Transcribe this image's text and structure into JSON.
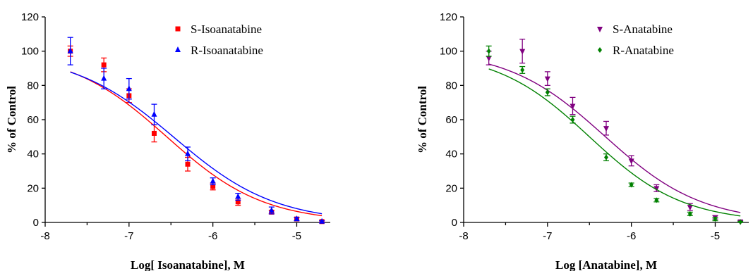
{
  "chart_data": [
    {
      "type": "scatter",
      "xlabel": "Log[ Isoanatabine], M",
      "ylabel": "% of Control",
      "xlim": [
        -8,
        -4.6
      ],
      "ylim": [
        0,
        120
      ],
      "xticks": [
        -8,
        -7,
        -6,
        -5
      ],
      "yticks": [
        0,
        20,
        40,
        60,
        80,
        100,
        120
      ],
      "legend_position": "top-right",
      "series": [
        {
          "name": "S-Isoanatabine",
          "color": "#ff0000",
          "marker": "square",
          "x": [
            -7.7,
            -7.3,
            -7.0,
            -6.7,
            -6.3,
            -6.0,
            -5.7,
            -5.3,
            -5.0,
            -4.7
          ],
          "y": [
            100,
            92,
            74,
            52,
            34,
            21,
            12,
            6,
            2,
            0.5
          ],
          "err": [
            3,
            4,
            4,
            5,
            4,
            2,
            2,
            1,
            1,
            0.5
          ],
          "fit": {
            "top": 100,
            "bottom": 0,
            "logIC50": -6.55,
            "hill": 0.75
          }
        },
        {
          "name": "R-Isoanatabine",
          "color": "#0000ff",
          "marker": "triangle",
          "x": [
            -7.7,
            -7.3,
            -7.0,
            -6.7,
            -6.3,
            -6.0,
            -5.7,
            -5.3,
            -5.0,
            -4.7
          ],
          "y": [
            100,
            84,
            78,
            63,
            40,
            24,
            15,
            7,
            2,
            0.5
          ],
          "err": [
            8,
            6,
            6,
            6,
            4,
            2,
            2,
            2,
            1,
            0.5
          ],
          "fit": {
            "top": 99,
            "bottom": 0,
            "logIC50": -6.46,
            "hill": 0.72
          }
        }
      ]
    },
    {
      "type": "scatter",
      "xlabel": "Log [Anatabine], M",
      "ylabel": "% of Control",
      "xlim": [
        -8,
        -4.6
      ],
      "ylim": [
        0,
        120
      ],
      "xticks": [
        -8,
        -7,
        -6,
        -5
      ],
      "yticks": [
        0,
        20,
        40,
        60,
        80,
        100,
        120
      ],
      "legend_position": "top-right",
      "series": [
        {
          "name": "S-Anatabine",
          "color": "#800080",
          "marker": "triangle-down",
          "x": [
            -7.7,
            -7.3,
            -7.0,
            -6.7,
            -6.3,
            -6.0,
            -5.7,
            -5.3,
            -5.0,
            -4.7
          ],
          "y": [
            96,
            100,
            84,
            68,
            55,
            36,
            20,
            9,
            3,
            0.5
          ],
          "err": [
            4,
            7,
            4,
            5,
            4,
            3,
            2,
            2,
            1,
            0.5
          ],
          "fit": {
            "top": 101,
            "bottom": 0,
            "logIC50": -6.32,
            "hill": 0.75
          }
        },
        {
          "name": "R-Anatabine",
          "color": "#008000",
          "marker": "diamond",
          "x": [
            -7.7,
            -7.3,
            -7.0,
            -6.7,
            -6.3,
            -6.0,
            -5.7,
            -5.3,
            -5.0,
            -4.7
          ],
          "y": [
            100,
            89,
            76,
            60,
            38,
            22,
            13,
            5,
            2,
            0.3
          ],
          "err": [
            3,
            2,
            2,
            2,
            2,
            1,
            1,
            1,
            1,
            0.3
          ],
          "fit": {
            "top": 100,
            "bottom": 0,
            "logIC50": -6.5,
            "hill": 0.78
          }
        }
      ]
    }
  ]
}
